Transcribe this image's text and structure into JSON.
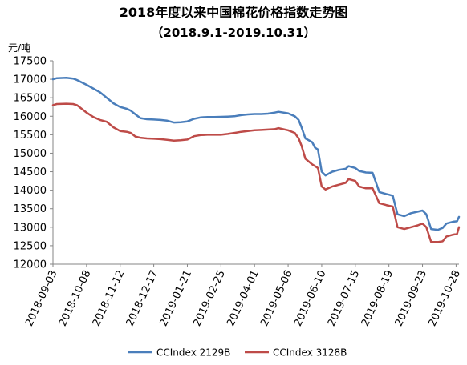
{
  "chart_data": {
    "type": "line",
    "title": "2018年度以来中国棉花价格指数走势图",
    "subtitle": "（2018.9.1-2019.10.31）",
    "ylabel": "元/吨",
    "ylim": [
      12000,
      17500
    ],
    "y_ticks": [
      "12000",
      "12500",
      "13000",
      "13500",
      "14000",
      "14500",
      "15000",
      "15500",
      "16000",
      "16500",
      "17000",
      "17500"
    ],
    "x_tick_labels": [
      "2018-09-03",
      "2018-10-08",
      "2018-11-12",
      "2018-12-17",
      "2019-01-21",
      "2019-02-25",
      "2019-04-01",
      "2019-05-06",
      "2019-06-10",
      "2019-07-15",
      "2019-08-19",
      "2019-09-23",
      "2019-10-28"
    ],
    "x_range": [
      "2018-09-03",
      "2019-10-31"
    ],
    "grid": false,
    "legend_position": "bottom",
    "colors": {
      "CCIndex 2129B": "#4a7ebb",
      "CCIndex 3128B": "#be4b48"
    },
    "series": [
      {
        "name": "CCIndex 2129B",
        "color": "#4a7ebb",
        "points": [
          [
            "2018-09-03",
            17000
          ],
          [
            "2018-09-07",
            17030
          ],
          [
            "2018-09-17",
            17040
          ],
          [
            "2018-09-24",
            17020
          ],
          [
            "2018-09-28",
            16980
          ],
          [
            "2018-10-08",
            16850
          ],
          [
            "2018-10-15",
            16750
          ],
          [
            "2018-10-22",
            16650
          ],
          [
            "2018-10-29",
            16500
          ],
          [
            "2018-11-05",
            16350
          ],
          [
            "2018-11-12",
            16250
          ],
          [
            "2018-11-19",
            16200
          ],
          [
            "2018-11-23",
            16150
          ],
          [
            "2018-11-28",
            16050
          ],
          [
            "2018-12-03",
            15950
          ],
          [
            "2018-12-10",
            15920
          ],
          [
            "2018-12-17",
            15910
          ],
          [
            "2018-12-24",
            15900
          ],
          [
            "2018-12-31",
            15880
          ],
          [
            "2019-01-07",
            15830
          ],
          [
            "2019-01-14",
            15840
          ],
          [
            "2019-01-21",
            15860
          ],
          [
            "2019-01-28",
            15930
          ],
          [
            "2019-02-04",
            15970
          ],
          [
            "2019-02-11",
            15980
          ],
          [
            "2019-02-18",
            15980
          ],
          [
            "2019-02-25",
            15985
          ],
          [
            "2019-03-04",
            15990
          ],
          [
            "2019-03-11",
            16000
          ],
          [
            "2019-03-18",
            16030
          ],
          [
            "2019-03-25",
            16050
          ],
          [
            "2019-04-01",
            16060
          ],
          [
            "2019-04-08",
            16060
          ],
          [
            "2019-04-15",
            16070
          ],
          [
            "2019-04-22",
            16100
          ],
          [
            "2019-04-26",
            16120
          ],
          [
            "2019-05-06",
            16080
          ],
          [
            "2019-05-13",
            16000
          ],
          [
            "2019-05-17",
            15900
          ],
          [
            "2019-05-20",
            15700
          ],
          [
            "2019-05-24",
            15400
          ],
          [
            "2019-05-31",
            15300
          ],
          [
            "2019-06-03",
            15150
          ],
          [
            "2019-06-06",
            15100
          ],
          [
            "2019-06-10",
            14500
          ],
          [
            "2019-06-14",
            14400
          ],
          [
            "2019-06-21",
            14500
          ],
          [
            "2019-06-28",
            14550
          ],
          [
            "2019-07-05",
            14580
          ],
          [
            "2019-07-08",
            14650
          ],
          [
            "2019-07-15",
            14600
          ],
          [
            "2019-07-19",
            14520
          ],
          [
            "2019-07-26",
            14480
          ],
          [
            "2019-08-02",
            14470
          ],
          [
            "2019-08-09",
            13950
          ],
          [
            "2019-08-16",
            13900
          ],
          [
            "2019-08-19",
            13880
          ],
          [
            "2019-08-23",
            13850
          ],
          [
            "2019-08-28",
            13350
          ],
          [
            "2019-09-04",
            13300
          ],
          [
            "2019-09-11",
            13380
          ],
          [
            "2019-09-18",
            13420
          ],
          [
            "2019-09-23",
            13450
          ],
          [
            "2019-09-27",
            13350
          ],
          [
            "2019-10-02",
            12950
          ],
          [
            "2019-10-09",
            12930
          ],
          [
            "2019-10-14",
            12980
          ],
          [
            "2019-10-18",
            13100
          ],
          [
            "2019-10-25",
            13150
          ],
          [
            "2019-10-29",
            13160
          ],
          [
            "2019-10-31",
            13280
          ]
        ]
      },
      {
        "name": "CCIndex 3128B",
        "color": "#be4b48",
        "points": [
          [
            "2018-09-03",
            16300
          ],
          [
            "2018-09-07",
            16330
          ],
          [
            "2018-09-17",
            16340
          ],
          [
            "2018-09-24",
            16330
          ],
          [
            "2018-09-28",
            16300
          ],
          [
            "2018-10-08",
            16100
          ],
          [
            "2018-10-15",
            15980
          ],
          [
            "2018-10-22",
            15900
          ],
          [
            "2018-10-29",
            15850
          ],
          [
            "2018-11-05",
            15700
          ],
          [
            "2018-11-12",
            15600
          ],
          [
            "2018-11-19",
            15580
          ],
          [
            "2018-11-23",
            15550
          ],
          [
            "2018-11-28",
            15450
          ],
          [
            "2018-12-03",
            15420
          ],
          [
            "2018-12-10",
            15400
          ],
          [
            "2018-12-17",
            15390
          ],
          [
            "2018-12-24",
            15380
          ],
          [
            "2018-12-31",
            15360
          ],
          [
            "2019-01-07",
            15340
          ],
          [
            "2019-01-14",
            15350
          ],
          [
            "2019-01-21",
            15370
          ],
          [
            "2019-01-28",
            15460
          ],
          [
            "2019-02-04",
            15490
          ],
          [
            "2019-02-11",
            15500
          ],
          [
            "2019-02-18",
            15500
          ],
          [
            "2019-02-25",
            15500
          ],
          [
            "2019-03-04",
            15520
          ],
          [
            "2019-03-11",
            15550
          ],
          [
            "2019-03-18",
            15580
          ],
          [
            "2019-03-25",
            15600
          ],
          [
            "2019-04-01",
            15620
          ],
          [
            "2019-04-08",
            15630
          ],
          [
            "2019-04-15",
            15640
          ],
          [
            "2019-04-22",
            15650
          ],
          [
            "2019-04-26",
            15680
          ],
          [
            "2019-05-06",
            15620
          ],
          [
            "2019-05-13",
            15550
          ],
          [
            "2019-05-17",
            15400
          ],
          [
            "2019-05-20",
            15200
          ],
          [
            "2019-05-24",
            14850
          ],
          [
            "2019-05-31",
            14700
          ],
          [
            "2019-06-03",
            14650
          ],
          [
            "2019-06-06",
            14600
          ],
          [
            "2019-06-10",
            14100
          ],
          [
            "2019-06-14",
            14020
          ],
          [
            "2019-06-21",
            14100
          ],
          [
            "2019-06-28",
            14150
          ],
          [
            "2019-07-05",
            14200
          ],
          [
            "2019-07-08",
            14300
          ],
          [
            "2019-07-15",
            14250
          ],
          [
            "2019-07-19",
            14100
          ],
          [
            "2019-07-26",
            14050
          ],
          [
            "2019-08-02",
            14050
          ],
          [
            "2019-08-09",
            13650
          ],
          [
            "2019-08-16",
            13600
          ],
          [
            "2019-08-19",
            13580
          ],
          [
            "2019-08-23",
            13560
          ],
          [
            "2019-08-28",
            13000
          ],
          [
            "2019-09-04",
            12950
          ],
          [
            "2019-09-11",
            13000
          ],
          [
            "2019-09-18",
            13050
          ],
          [
            "2019-09-23",
            13100
          ],
          [
            "2019-09-27",
            13000
          ],
          [
            "2019-10-02",
            12600
          ],
          [
            "2019-10-09",
            12600
          ],
          [
            "2019-10-14",
            12620
          ],
          [
            "2019-10-18",
            12750
          ],
          [
            "2019-10-25",
            12800
          ],
          [
            "2019-10-29",
            12820
          ],
          [
            "2019-10-31",
            13000
          ]
        ]
      }
    ]
  }
}
